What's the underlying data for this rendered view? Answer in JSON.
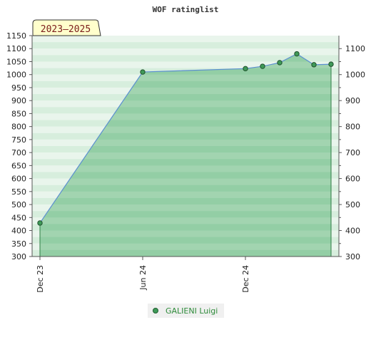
{
  "chart_data": {
    "type": "area",
    "title": "WOF ratinglist",
    "badge": "2023–2025",
    "x_ticks": [
      "Dec 23",
      "Jun 24",
      "Dec 24"
    ],
    "y_ticks_left": [
      300,
      350,
      400,
      450,
      500,
      550,
      600,
      650,
      700,
      750,
      800,
      850,
      900,
      950,
      1000,
      1050,
      1100,
      1150
    ],
    "y_ticks_right": [
      300,
      400,
      500,
      600,
      700,
      800,
      900,
      1000,
      1100
    ],
    "ylim": [
      300,
      1150
    ],
    "series": [
      {
        "name": "GALIENI Luigi",
        "x": [
          "2023-12",
          "2024-06",
          "2024-12",
          "2025-01",
          "2025-02",
          "2025-03",
          "2025-04",
          "2025-05"
        ],
        "values": [
          429,
          1010,
          1023,
          1032,
          1046,
          1080,
          1038,
          1040
        ]
      }
    ],
    "colors": {
      "fill": "#7cc392",
      "line": "#5b8fd0",
      "marker": "#3f9a58",
      "band_light": "#e9f5ec",
      "band_dark": "#b5dcc0"
    }
  }
}
